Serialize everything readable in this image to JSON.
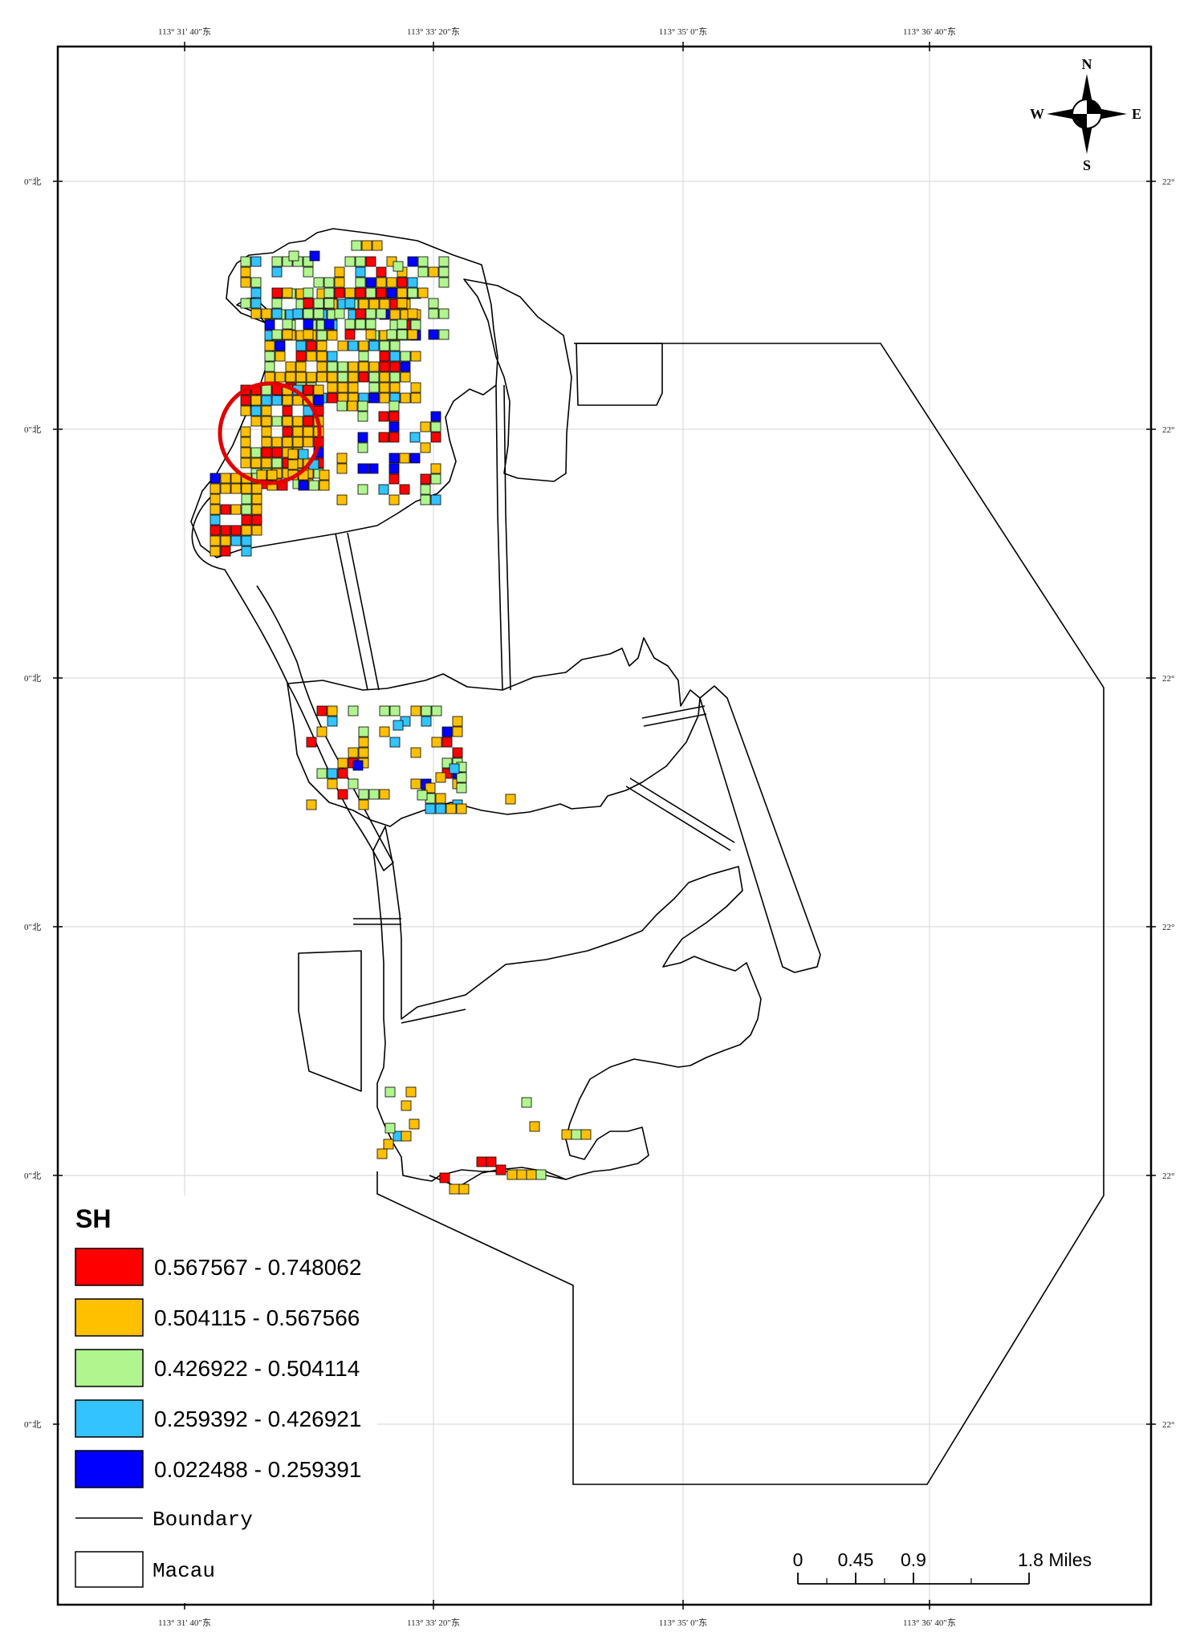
{
  "ticks": {
    "top": [
      "113° 31′ 40″东",
      "113° 33′ 20″东",
      "113° 35′ 0″东",
      "113° 36′ 40″东"
    ],
    "bottom": [
      "113° 31′ 40″东",
      "113° 33′ 20″东",
      "113° 35′ 0″东",
      "113° 36′ 40″东"
    ],
    "left": [
      "0″北",
      "0″北",
      "0″北",
      "0″北",
      "0″北",
      "0″北"
    ],
    "right": [
      "22°",
      "22°",
      "22°",
      "22°",
      "22°",
      "22°"
    ]
  },
  "compass": {
    "n": "N",
    "s": "S",
    "e": "E",
    "w": "W"
  },
  "legend": {
    "title": "SH",
    "classes": [
      {
        "label": "0.567567 - 0.748062",
        "color": "#ff0000"
      },
      {
        "label": "0.504115 - 0.567566",
        "color": "#ffc000"
      },
      {
        "label": "0.426922 - 0.504114",
        "color": "#b0f58e"
      },
      {
        "label": "0.259392 - 0.426921",
        "color": "#33c3ff"
      },
      {
        "label": "0.022488 - 0.259391",
        "color": "#0000ff"
      }
    ],
    "boundary_label": "Boundary",
    "macau_label": "Macau"
  },
  "scale": {
    "labels": [
      "0",
      "0.45",
      "0.9",
      "1.8 Miles"
    ]
  },
  "highlight_color": "#e00000"
}
